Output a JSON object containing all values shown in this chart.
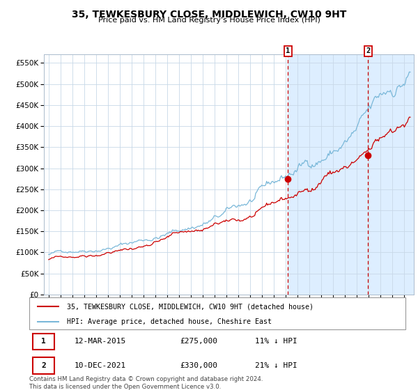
{
  "title": "35, TEWKESBURY CLOSE, MIDDLEWICH, CW10 9HT",
  "subtitle": "Price paid vs. HM Land Registry's House Price Index (HPI)",
  "legend_line1": "35, TEWKESBURY CLOSE, MIDDLEWICH, CW10 9HT (detached house)",
  "legend_line2": "HPI: Average price, detached house, Cheshire East",
  "table_row1": [
    "1",
    "12-MAR-2015",
    "£275,000",
    "11% ↓ HPI"
  ],
  "table_row2": [
    "2",
    "10-DEC-2021",
    "£330,000",
    "21% ↓ HPI"
  ],
  "footnote": "Contains HM Land Registry data © Crown copyright and database right 2024.\nThis data is licensed under the Open Government Licence v3.0.",
  "hpi_color": "#7ab8d9",
  "price_color": "#cc0000",
  "vline_color": "#cc0000",
  "bg_shade_color": "#ddeeff",
  "plot_bg_color": "#ffffff",
  "grid_color": "#c8d8e8",
  "marker1_year": 2015.19,
  "marker1_value": 275000,
  "marker2_year": 2021.94,
  "marker2_value": 330000,
  "vline1_year": 2015.19,
  "vline2_year": 2021.94,
  "ylim": [
    0,
    570000
  ],
  "xlim_start": 1994.6,
  "xlim_end": 2025.8
}
